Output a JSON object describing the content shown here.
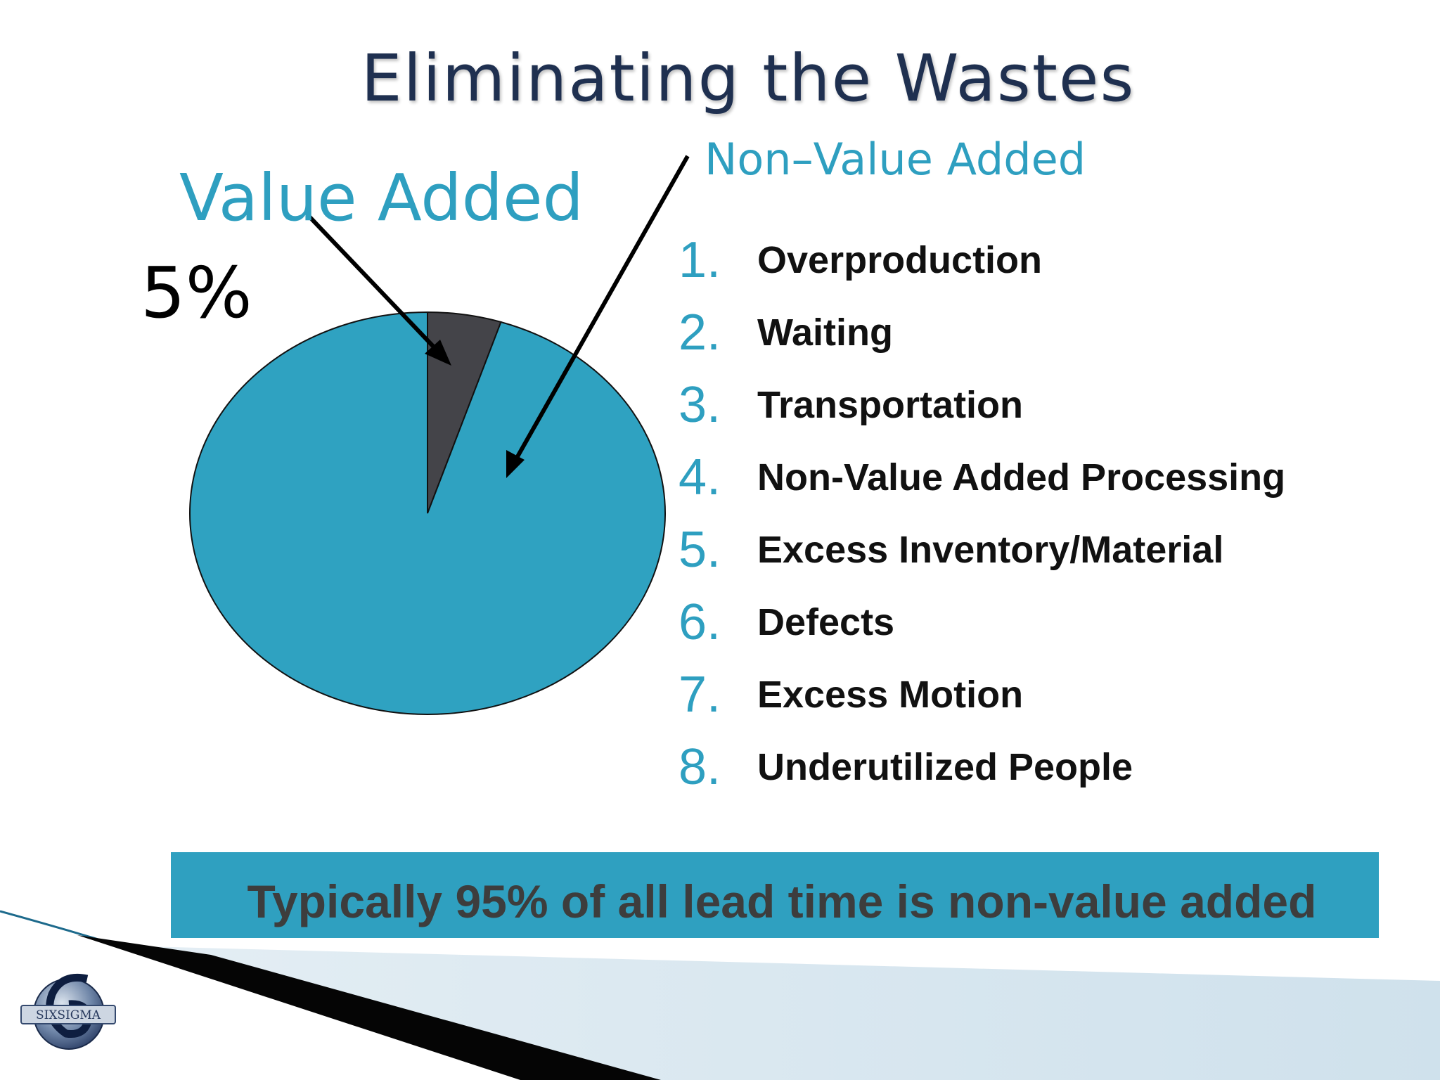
{
  "title": "Eliminating the Wastes",
  "chart_data": {
    "type": "pie",
    "slices": [
      {
        "label": "Value Added",
        "value": 5,
        "value_label": "5%",
        "color": "#444449"
      },
      {
        "label": "Non-Value Added",
        "value": 95,
        "color": "#2fa2c1"
      }
    ]
  },
  "labels": {
    "value_added": "Value Added",
    "value_added_pct": "5%",
    "non_value_added": "Non–Value Added"
  },
  "wastes": [
    {
      "num": "1.",
      "text": "Overproduction"
    },
    {
      "num": "2.",
      "text": "Waiting"
    },
    {
      "num": "3.",
      "text": "Transportation"
    },
    {
      "num": "4.",
      "text": "Non-Value Added Processing"
    },
    {
      "num": "5.",
      "text": "Excess Inventory/Material"
    },
    {
      "num": "6.",
      "text": "Defects"
    },
    {
      "num": "7.",
      "text": "Excess Motion"
    },
    {
      "num": "8.",
      "text": "Underutilized People"
    }
  ],
  "banner": {
    "text": "Typically 95% of all lead time is non-value added"
  },
  "logo": {
    "text": "SIXSIGMA"
  },
  "colors": {
    "accent": "#2e9fc0",
    "title": "#1f3050",
    "banner_bg": "#2fa0c0"
  }
}
